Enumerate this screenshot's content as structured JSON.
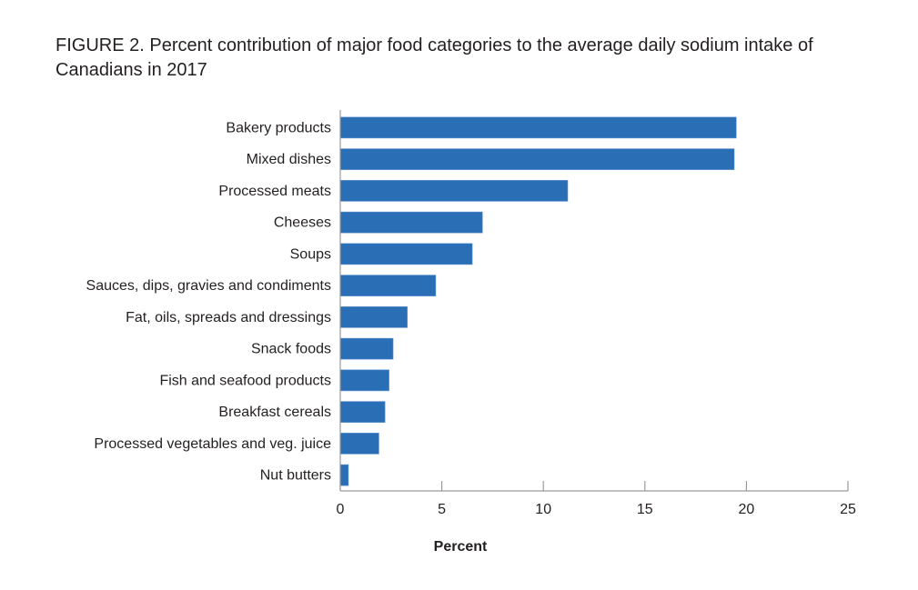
{
  "chart_data": {
    "type": "bar",
    "orientation": "horizontal",
    "title_prefix": "FIGURE 2.",
    "title": "Percent contribution of major food categories to the average daily sodium intake of Canadians in 2017",
    "xlabel": "Percent",
    "ylabel": "",
    "xlim": [
      0,
      25
    ],
    "xticks": [
      0,
      5,
      10,
      15,
      20,
      25
    ],
    "grid": false,
    "bar_color": "#2a6eb5",
    "categories": [
      "Bakery products",
      "Mixed dishes",
      "Processed meats",
      "Cheeses",
      "Soups",
      "Sauces, dips, gravies and condiments",
      "Fat, oils, spreads and dressings",
      "Snack foods",
      "Fish and seafood products",
      "Breakfast cereals",
      "Processed vegetables and veg. juice",
      "Nut butters"
    ],
    "values": [
      19.5,
      19.4,
      11.2,
      7.0,
      6.5,
      4.7,
      3.3,
      2.6,
      2.4,
      2.2,
      1.9,
      0.4
    ]
  }
}
